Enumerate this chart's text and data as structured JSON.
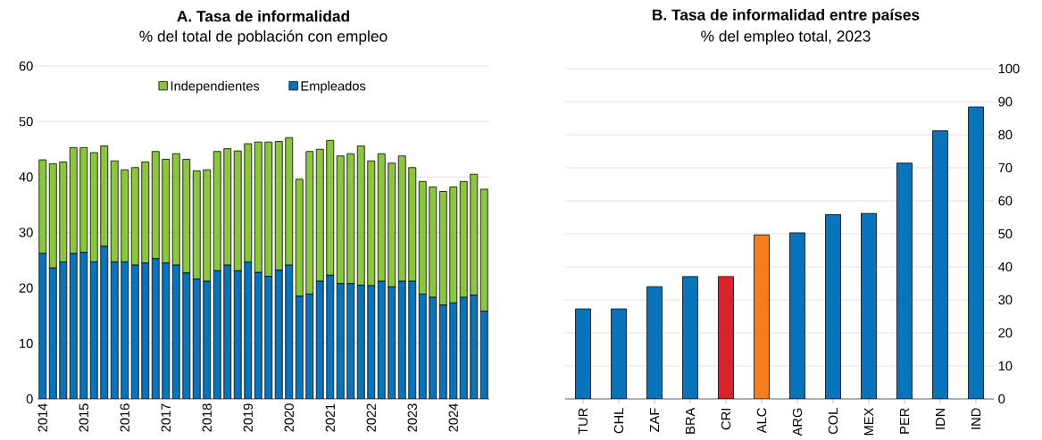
{
  "chart_data": [
    {
      "type": "bar",
      "title": "A. Tasa de informalidad",
      "subtitle": "% del total de población con empleo",
      "stacked": true,
      "categories": [
        "2014",
        null,
        null,
        null,
        "2015",
        null,
        null,
        null,
        "2016",
        null,
        null,
        null,
        "2017",
        null,
        null,
        null,
        "2018",
        null,
        null,
        null,
        "2019",
        null,
        null,
        null,
        "2020",
        null,
        null,
        null,
        "2021",
        null,
        null,
        null,
        "2022",
        null,
        null,
        null,
        "2023",
        null,
        null,
        null,
        "2024",
        null,
        null,
        null
      ],
      "series": [
        {
          "name": "Empleados",
          "color": "#0a74ba",
          "values": [
            26.2,
            23.6,
            24.7,
            26.2,
            26.4,
            24.7,
            27.5,
            24.7,
            24.7,
            24.1,
            24.5,
            25.3,
            24.5,
            24.1,
            22.7,
            21.6,
            21.2,
            23.1,
            24.1,
            23.1,
            24.7,
            22.8,
            22.1,
            23.2,
            24.1,
            18.5,
            18.9,
            21.2,
            22.3,
            20.8,
            20.8,
            20.5,
            20.4,
            21.2,
            20.2,
            21.2,
            21.2,
            18.9,
            18.3,
            16.9,
            17.3,
            18.3,
            18.7,
            15.8
          ]
        },
        {
          "name": "Independientes",
          "color": "#8cc63f",
          "values": [
            16.9,
            18.8,
            18.0,
            19.1,
            18.9,
            19.7,
            18.1,
            18.2,
            16.6,
            17.6,
            18.2,
            19.3,
            18.7,
            20.1,
            20.5,
            19.5,
            20.1,
            21.5,
            21.0,
            21.6,
            21.3,
            23.5,
            24.2,
            23.2,
            23.0,
            21.1,
            25.7,
            23.8,
            24.3,
            23.0,
            23.4,
            25.1,
            22.5,
            23.0,
            22.3,
            22.6,
            20.5,
            20.3,
            19.9,
            20.5,
            20.9,
            20.9,
            21.8,
            22.0
          ]
        }
      ],
      "ylim": [
        0,
        60
      ],
      "yticks": [
        0,
        10,
        20,
        30,
        40,
        50,
        60
      ],
      "grid": "y",
      "legend": "top"
    },
    {
      "type": "bar",
      "title": "B. Tasa de informalidad entre países",
      "subtitle": "% del empleo total, 2023",
      "categories": [
        "TUR",
        "CHL",
        "ZAF",
        "BRA",
        "CRI",
        "ALC",
        "ARG",
        "COL",
        "MEX",
        "PER",
        "IDN",
        "IND"
      ],
      "values": [
        27.3,
        27.3,
        34.0,
        37.1,
        37.1,
        49.7,
        50.3,
        55.8,
        56.2,
        71.4,
        81.2,
        88.4
      ],
      "colors": [
        "#0a74ba",
        "#0a74ba",
        "#0a74ba",
        "#0a74ba",
        "#d7242a",
        "#f47d20",
        "#0a74ba",
        "#0a74ba",
        "#0a74ba",
        "#0a74ba",
        "#0a74ba",
        "#0a74ba"
      ],
      "ylim": [
        0,
        100
      ],
      "yticks": [
        0,
        10,
        20,
        30,
        40,
        50,
        60,
        70,
        80,
        90,
        100
      ],
      "grid": "y"
    }
  ]
}
